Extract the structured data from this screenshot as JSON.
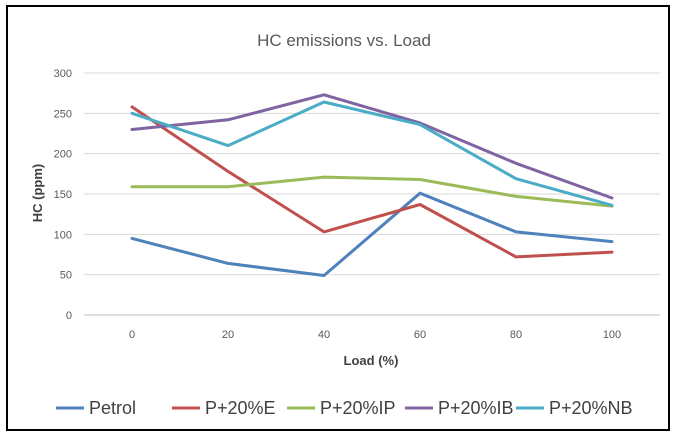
{
  "chart_data": {
    "type": "line",
    "title": "HC emissions vs. Load",
    "xlabel": "Load (%)",
    "ylabel": "HC (ppm)",
    "x": [
      0,
      20,
      40,
      60,
      80,
      100
    ],
    "ylim": [
      0,
      300
    ],
    "yticks": [
      0,
      50,
      100,
      150,
      200,
      250,
      300
    ],
    "grid": true,
    "legend_position": "bottom",
    "series": [
      {
        "name": "Petrol",
        "color": "#4F81BD",
        "values": [
          95,
          64,
          49,
          151,
          103,
          91
        ]
      },
      {
        "name": "P+20%E",
        "color": "#C0504D",
        "values": [
          258,
          178,
          103,
          137,
          72,
          78
        ]
      },
      {
        "name": "P+20%IP",
        "color": "#9BBB59",
        "values": [
          159,
          159,
          171,
          168,
          147,
          135
        ]
      },
      {
        "name": "P+20%IB",
        "color": "#8064A2",
        "values": [
          230,
          242,
          273,
          238,
          188,
          145
        ]
      },
      {
        "name": "P+20%NB",
        "color": "#4BACC6",
        "values": [
          250,
          210,
          264,
          236,
          169,
          136
        ]
      }
    ]
  }
}
